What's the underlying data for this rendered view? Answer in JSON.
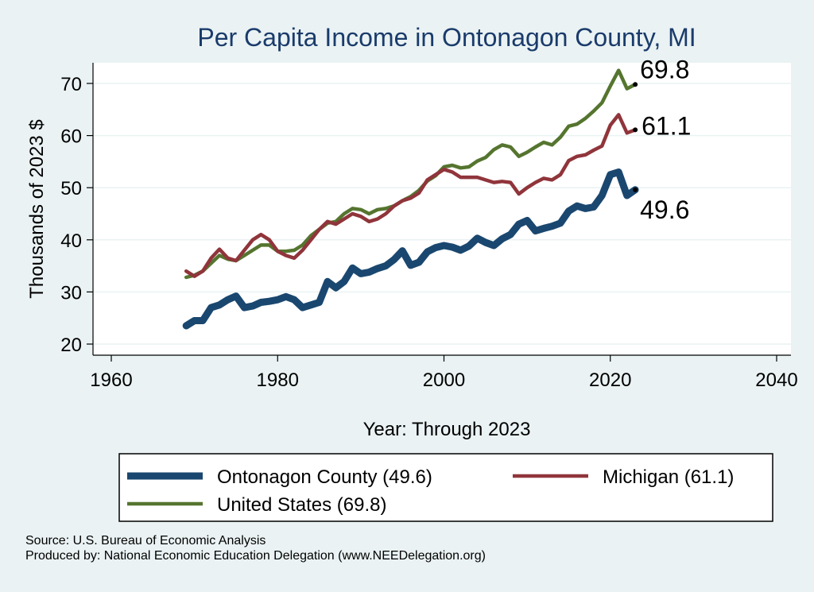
{
  "chart_data": {
    "type": "line",
    "title": "Per Capita Income in Ontonagon County, MI",
    "xlabel": "Year: Through 2023",
    "ylabel": "Thousands of 2023 $",
    "xlim": [
      1960,
      2040
    ],
    "ylim": [
      18,
      76
    ],
    "xticks": [
      1960,
      1980,
      2000,
      2020,
      2040
    ],
    "yticks": [
      20,
      30,
      40,
      50,
      60,
      70
    ],
    "grid": true,
    "legend_position": "bottom",
    "series": [
      {
        "name": "Ontonagon County (49.6)",
        "color": "#1a476f",
        "end_label": "49.6",
        "x": [
          1969,
          1970,
          1971,
          1972,
          1973,
          1974,
          1975,
          1976,
          1977,
          1978,
          1979,
          1980,
          1981,
          1982,
          1983,
          1984,
          1985,
          1986,
          1987,
          1988,
          1989,
          1990,
          1991,
          1992,
          1993,
          1994,
          1995,
          1996,
          1997,
          1998,
          1999,
          2000,
          2001,
          2002,
          2003,
          2004,
          2005,
          2006,
          2007,
          2008,
          2009,
          2010,
          2011,
          2012,
          2013,
          2014,
          2015,
          2016,
          2017,
          2018,
          2019,
          2020,
          2021,
          2022,
          2023
        ],
        "y": [
          23.5,
          24.5,
          24.5,
          27,
          27.5,
          28.5,
          29.2,
          27,
          27.3,
          28,
          28.2,
          28.5,
          29.1,
          28.5,
          27,
          27.5,
          28,
          32,
          30.8,
          32,
          34.6,
          33.5,
          33.8,
          34.5,
          35,
          36.2,
          37.9,
          35.1,
          35.7,
          37.7,
          38.5,
          38.9,
          38.6,
          38,
          38.8,
          40.3,
          39.5,
          38.9,
          40.2,
          41,
          43,
          43.7,
          41.7,
          42.2,
          42.6,
          43.2,
          45.5,
          46.5,
          46,
          46.3,
          48.5,
          52.5,
          53,
          48.5,
          49.6
        ]
      },
      {
        "name": "Michigan (61.1)",
        "color": "#90353b",
        "end_label": "61.1",
        "x": [
          1969,
          1970,
          1971,
          1972,
          1973,
          1974,
          1975,
          1976,
          1977,
          1978,
          1979,
          1980,
          1981,
          1982,
          1983,
          1984,
          1985,
          1986,
          1987,
          1988,
          1989,
          1990,
          1991,
          1992,
          1993,
          1994,
          1995,
          1996,
          1997,
          1998,
          1999,
          2000,
          2001,
          2002,
          2003,
          2004,
          2005,
          2006,
          2007,
          2008,
          2009,
          2010,
          2011,
          2012,
          2013,
          2014,
          2015,
          2016,
          2017,
          2018,
          2019,
          2020,
          2021,
          2022,
          2023
        ],
        "y": [
          34,
          33,
          34,
          36.5,
          38.2,
          36.5,
          36,
          38,
          40,
          41,
          40,
          37.8,
          37,
          36.5,
          38,
          40,
          42,
          43.5,
          43,
          44,
          45,
          44.5,
          43.5,
          44,
          45,
          46.5,
          47.5,
          48,
          49,
          51.5,
          52.5,
          53.5,
          53,
          52,
          52,
          52,
          51.5,
          51,
          51.2,
          51,
          48.8,
          50,
          51,
          51.8,
          51.5,
          52.5,
          55.2,
          56,
          56.3,
          57.2,
          58,
          62,
          64,
          60.5,
          61.1
        ]
      },
      {
        "name": "United States (69.8)",
        "color": "#55752f",
        "end_label": "69.8",
        "x": [
          1969,
          1970,
          1971,
          1972,
          1973,
          1974,
          1975,
          1976,
          1977,
          1978,
          1979,
          1980,
          1981,
          1982,
          1983,
          1984,
          1985,
          1986,
          1987,
          1988,
          1989,
          1990,
          1991,
          1992,
          1993,
          1994,
          1995,
          1996,
          1997,
          1998,
          1999,
          2000,
          2001,
          2002,
          2003,
          2004,
          2005,
          2006,
          2007,
          2008,
          2009,
          2010,
          2011,
          2012,
          2013,
          2014,
          2015,
          2016,
          2017,
          2018,
          2019,
          2020,
          2021,
          2022,
          2023
        ],
        "y": [
          32.8,
          33.2,
          34,
          35.5,
          37,
          36.3,
          36,
          37,
          38,
          39,
          39,
          37.8,
          37.8,
          38,
          39,
          40.8,
          42,
          43.2,
          43.5,
          45,
          46,
          45.8,
          45,
          45.8,
          46,
          46.5,
          47.5,
          48.3,
          49.5,
          51.3,
          52.3,
          54,
          54.3,
          53.8,
          54,
          55.1,
          55.8,
          57.3,
          58.2,
          57.8,
          56,
          56.8,
          57.8,
          58.7,
          58.2,
          59.7,
          61.8,
          62.2,
          63.3,
          64.7,
          66.3,
          69.5,
          72.5,
          69,
          69.8
        ]
      }
    ]
  },
  "footer": {
    "source": "Source: U.S. Bureau of Economic Analysis",
    "produced_by": "Produced by: National Economic Education Delegation (www.NEEDelegation.org)"
  }
}
